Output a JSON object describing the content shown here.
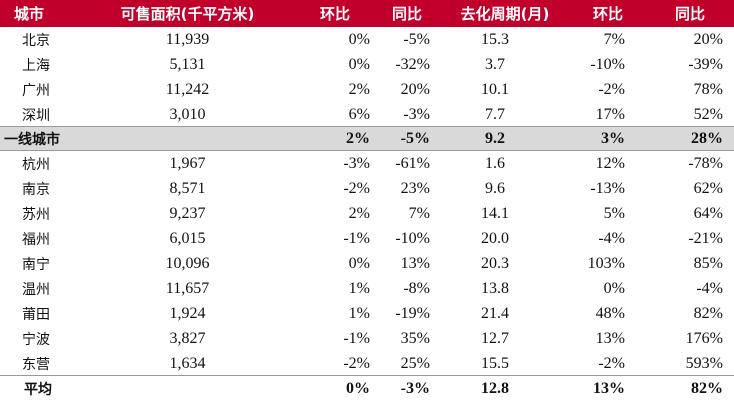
{
  "header": {
    "city": "城市",
    "area": "可售面积(千平方米)",
    "mom": "环比",
    "yoy": "同比",
    "cycle": "去化周期(月)",
    "mom2": "环比",
    "yoy2": "同比"
  },
  "rows": [
    {
      "city": "北京",
      "area": "11,939",
      "mom": "0%",
      "yoy": "-5%",
      "cycle": "15.3",
      "mom2": "7%",
      "yoy2": "20%"
    },
    {
      "city": "上海",
      "area": "5,131",
      "mom": "0%",
      "yoy": "-32%",
      "cycle": "3.7",
      "mom2": "-10%",
      "yoy2": "-39%"
    },
    {
      "city": "广州",
      "area": "11,242",
      "mom": "2%",
      "yoy": "20%",
      "cycle": "10.1",
      "mom2": "-2%",
      "yoy2": "78%"
    },
    {
      "city": "深圳",
      "area": "3,010",
      "mom": "6%",
      "yoy": "-3%",
      "cycle": "7.7",
      "mom2": "17%",
      "yoy2": "52%"
    },
    {
      "city": "一线城市",
      "area": "",
      "mom": "2%",
      "yoy": "-5%",
      "cycle": "9.2",
      "mom2": "3%",
      "yoy2": "28%"
    },
    {
      "city": "杭州",
      "area": "1,967",
      "mom": "-3%",
      "yoy": "-61%",
      "cycle": "1.6",
      "mom2": "12%",
      "yoy2": "-78%"
    },
    {
      "city": "南京",
      "area": "8,571",
      "mom": "-2%",
      "yoy": "23%",
      "cycle": "9.6",
      "mom2": "-13%",
      "yoy2": "62%"
    },
    {
      "city": "苏州",
      "area": "9,237",
      "mom": "2%",
      "yoy": "7%",
      "cycle": "14.1",
      "mom2": "5%",
      "yoy2": "64%"
    },
    {
      "city": "福州",
      "area": "6,015",
      "mom": "-1%",
      "yoy": "-10%",
      "cycle": "20.0",
      "mom2": "-4%",
      "yoy2": "-21%"
    },
    {
      "city": "南宁",
      "area": "10,096",
      "mom": "0%",
      "yoy": "13%",
      "cycle": "20.3",
      "mom2": "103%",
      "yoy2": "85%"
    },
    {
      "city": "温州",
      "area": "11,657",
      "mom": "1%",
      "yoy": "-8%",
      "cycle": "13.8",
      "mom2": "0%",
      "yoy2": "-4%"
    },
    {
      "city": "莆田",
      "area": "1,924",
      "mom": "1%",
      "yoy": "-19%",
      "cycle": "21.4",
      "mom2": "48%",
      "yoy2": "82%"
    },
    {
      "city": "宁波",
      "area": "3,827",
      "mom": "-1%",
      "yoy": "35%",
      "cycle": "12.7",
      "mom2": "13%",
      "yoy2": "176%"
    },
    {
      "city": "东营",
      "area": "1,634",
      "mom": "-2%",
      "yoy": "25%",
      "cycle": "15.5",
      "mom2": "-2%",
      "yoy2": "593%"
    },
    {
      "city": "平均",
      "area": "",
      "mom": "0%",
      "yoy": "-3%",
      "cycle": "12.8",
      "mom2": "13%",
      "yoy2": "82%"
    }
  ]
}
